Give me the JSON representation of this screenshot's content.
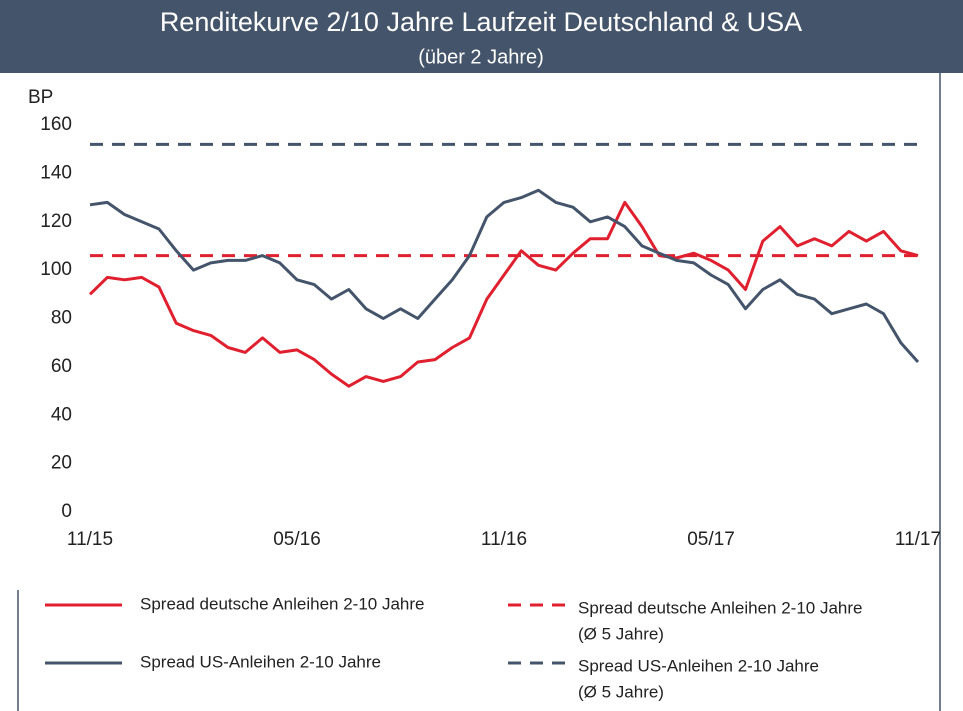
{
  "chart_data": {
    "type": "line",
    "title": "Renditekurve 2/10 Jahre Laufzeit Deutschland & USA",
    "subtitle": "(über 2 Jahre)",
    "y_label": "BP",
    "x": [
      0,
      0.5,
      1,
      1.5,
      2,
      2.5,
      3,
      3.5,
      4,
      4.5,
      5,
      5.5,
      6,
      6.5,
      7,
      7.5,
      8,
      8.5,
      9,
      9.5,
      10,
      10.5,
      11,
      11.5,
      12,
      12.5,
      13,
      13.5,
      14,
      14.5,
      15,
      15.5,
      16,
      16.5,
      17,
      17.5,
      18,
      18.5,
      19,
      19.5,
      20,
      20.5,
      21,
      21.5,
      22,
      22.5,
      23,
      23.5,
      24
    ],
    "xlim": [
      0,
      24
    ],
    "xticks": [
      {
        "value": 0,
        "label": "11/15"
      },
      {
        "value": 6,
        "label": "05/16"
      },
      {
        "value": 12,
        "label": "11/16"
      },
      {
        "value": 18,
        "label": "05/17"
      },
      {
        "value": 24,
        "label": "11/17"
      }
    ],
    "ylim": [
      0,
      160
    ],
    "yticks": [
      0,
      20,
      40,
      60,
      80,
      100,
      120,
      140,
      160
    ],
    "series": [
      {
        "name": "Spread deutsche Anleihen 2-10 Jahre",
        "color": "#e0202e",
        "values": [
          90,
          97,
          96,
          97,
          93,
          78,
          75,
          73,
          68,
          66,
          72,
          66,
          67,
          63,
          57,
          52,
          56,
          54,
          56,
          62,
          63,
          68,
          72,
          88,
          98,
          108,
          102,
          100,
          107,
          113,
          113,
          128,
          118,
          106,
          105,
          107,
          104,
          100,
          92,
          112,
          118,
          110,
          113,
          110,
          116,
          112,
          116,
          108,
          106
        ]
      },
      {
        "name": "Spread US-Anleihen 2-10 Jahre",
        "color": "#44546a",
        "values": [
          127,
          128,
          123,
          120,
          117,
          108,
          100,
          103,
          104,
          104,
          106,
          103,
          96,
          94,
          88,
          92,
          84,
          80,
          84,
          80,
          88,
          96,
          106,
          122,
          128,
          130,
          133,
          128,
          126,
          120,
          122,
          118,
          110,
          107,
          104,
          103,
          98,
          94,
          84,
          92,
          96,
          90,
          88,
          82,
          84,
          86,
          82,
          70,
          62
        ]
      }
    ],
    "reference_lines": [
      {
        "name_lines": [
          "Spread deutsche Anleihen 2-10 Jahre",
          "(Ø 5 Jahre)"
        ],
        "value": 106,
        "color": "#e0202e",
        "dashed": true
      },
      {
        "name_lines": [
          "Spread US-Anleihen 2-10 Jahre",
          "(Ø 5 Jahre)"
        ],
        "value": 152,
        "color": "#44546a",
        "dashed": true
      }
    ]
  }
}
